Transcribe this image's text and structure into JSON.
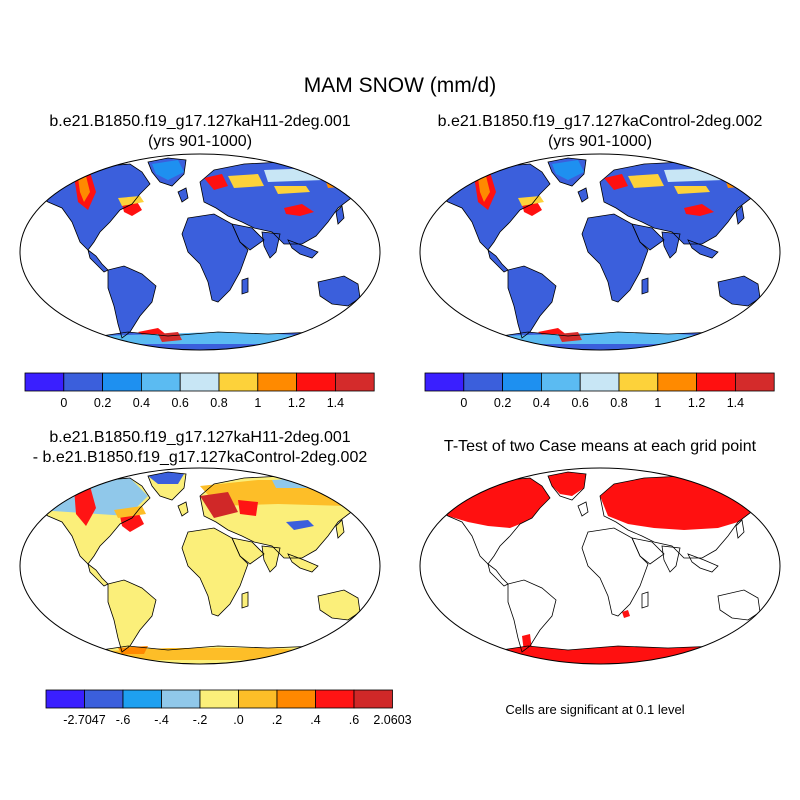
{
  "main_title": "MAM SNOW (mm/d)",
  "panels": [
    {
      "title_line1": "b.e21.B1850.f19_g17.127kaH11-2deg.001",
      "title_line2": "(yrs 901-1000)"
    },
    {
      "title_line1": "b.e21.B1850.f19_g17.127kaControl-2deg.002",
      "title_line2": "(yrs 901-1000)"
    },
    {
      "title_line1": "b.e21.B1850.f19_g17.127kaH11-2deg.001",
      "title_line2": "- b.e21.B1850.f19_g17.127kaControl-2deg.002"
    },
    {
      "title_line1": "T-Test of two Case means at each grid point",
      "title_line2": ""
    }
  ],
  "colorbars": {
    "mean": {
      "colors": [
        "#3a1fff",
        "#3b5fdc",
        "#1e90f0",
        "#5bbbf2",
        "#c8e6f5",
        "#fdd23a",
        "#ff8a00",
        "#ff1010",
        "#d42b2b"
      ],
      "labels": [
        "0",
        "0.2",
        "0.4",
        "0.6",
        "0.8",
        "1",
        "1.2",
        "1.4"
      ]
    },
    "diff": {
      "colors": [
        "#3a1fff",
        "#3b5fdc",
        "#1ea0f0",
        "#90c8ea",
        "#fbef7a",
        "#fdbe28",
        "#ff8800",
        "#ff1414",
        "#d02828"
      ],
      "labels": [
        "-2.7047",
        "-.6",
        "-.4",
        "-.2",
        ".0",
        ".2",
        ".4",
        ".6",
        "2.0603"
      ]
    }
  },
  "significance_note": "Cells are significant at 0.1 level",
  "colors": {
    "ocean": "#ffffff",
    "mean_land_base": "#3b5fdc",
    "diff_land_base": "#fbef7a",
    "ttest_significant": "#ff1010"
  }
}
